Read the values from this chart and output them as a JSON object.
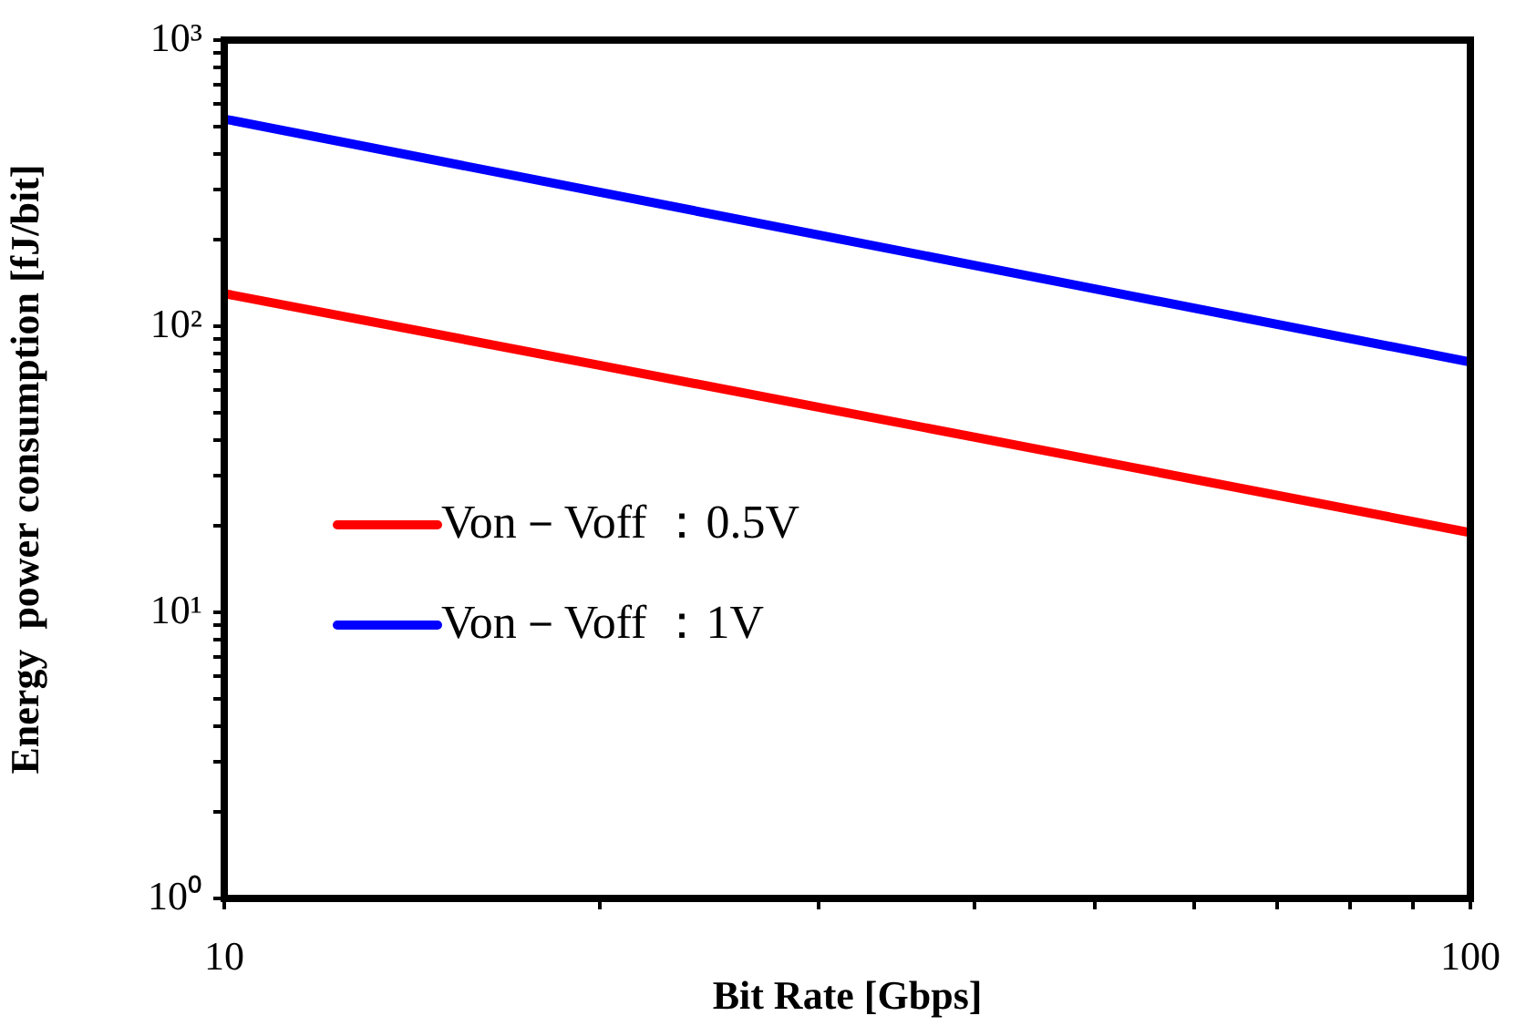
{
  "chart_data": {
    "type": "line",
    "xlabel": "Bit Rate [Gbps]",
    "ylabel": "Energy  power consumption [fJ/bit]",
    "x": [
      10,
      20,
      50,
      100
    ],
    "series": [
      {
        "name": "Von－Voff ：0.5V",
        "color": "#ff0000",
        "values": [
          130,
          73,
          34,
          19
        ]
      },
      {
        "name": "Von－Voff ：1V",
        "color": "#0000ff",
        "values": [
          530,
          294,
          135,
          75
        ]
      }
    ],
    "log": "xy",
    "xlim": [
      10,
      100
    ],
    "ylim": [
      1,
      1000
    ],
    "xticks": [
      10,
      {
        "value": 20,
        "label": null
      },
      {
        "value": 30,
        "label": null
      },
      {
        "value": 40,
        "label": null
      },
      {
        "value": 50,
        "label": null
      },
      {
        "value": 60,
        "label": null
      },
      {
        "value": 70,
        "label": null
      },
      {
        "value": 80,
        "label": null
      },
      {
        "value": 90,
        "label": null
      },
      100
    ],
    "yticks": [
      {
        "value": 1,
        "label": "10⁰"
      },
      {
        "value": 2,
        "label": null
      },
      {
        "value": 3,
        "label": null
      },
      {
        "value": 4,
        "label": null
      },
      {
        "value": 5,
        "label": null
      },
      {
        "value": 6,
        "label": null
      },
      {
        "value": 7,
        "label": null
      },
      {
        "value": 8,
        "label": null
      },
      {
        "value": 9,
        "label": null
      },
      {
        "value": 10,
        "label": "10¹"
      },
      {
        "value": 20,
        "label": null
      },
      {
        "value": 30,
        "label": null
      },
      {
        "value": 40,
        "label": null
      },
      {
        "value": 50,
        "label": null
      },
      {
        "value": 60,
        "label": null
      },
      {
        "value": 70,
        "label": null
      },
      {
        "value": 80,
        "label": null
      },
      {
        "value": 90,
        "label": null
      },
      {
        "value": 100,
        "label": "10²"
      },
      {
        "value": 200,
        "label": null
      },
      {
        "value": 300,
        "label": null
      },
      {
        "value": 400,
        "label": null
      },
      {
        "value": 500,
        "label": null
      },
      {
        "value": 600,
        "label": null
      },
      {
        "value": 700,
        "label": null
      },
      {
        "value": 800,
        "label": null
      },
      {
        "value": 900,
        "label": null
      },
      {
        "value": 1000,
        "label": "10³"
      }
    ],
    "grid": false,
    "legend": "bottom left",
    "marker": "none",
    "line_style": "solid"
  }
}
